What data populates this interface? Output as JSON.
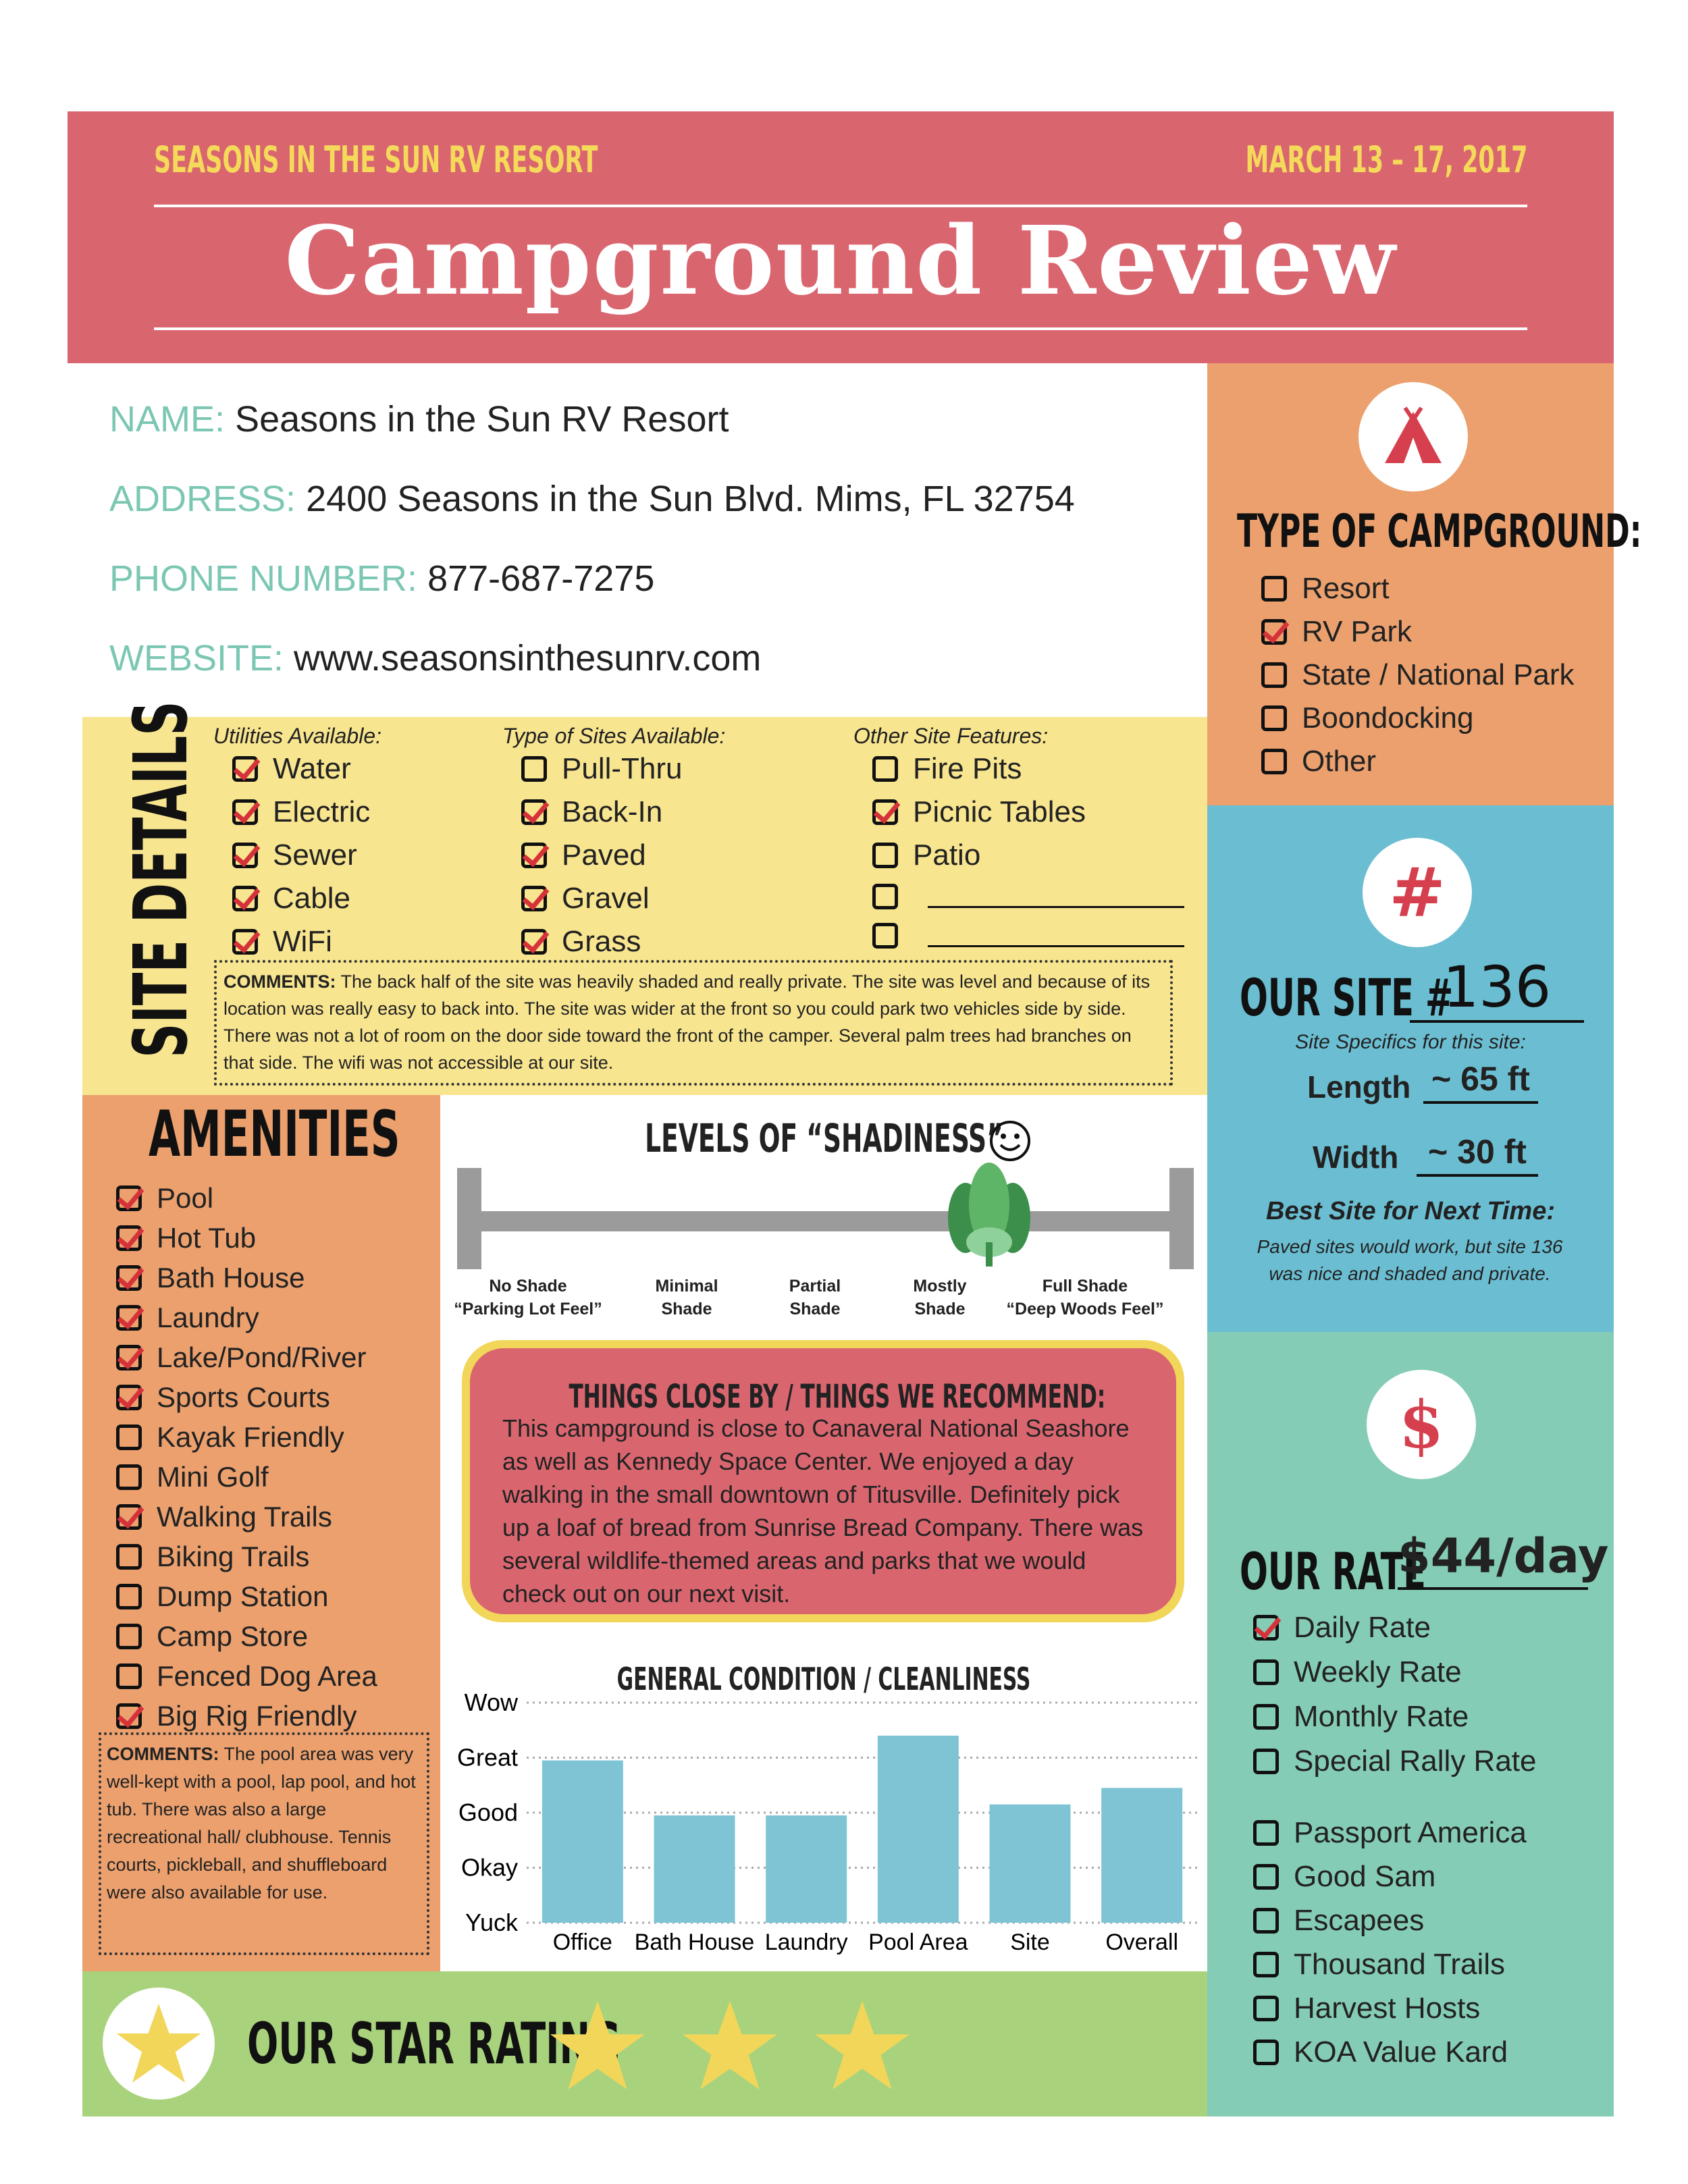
{
  "header": {
    "resort": "SEASONS IN THE SUN RV RESORT",
    "dates": "MARCH 13 – 17, 2017",
    "title": "Campground Review"
  },
  "info": [
    {
      "label": "NAME:",
      "value": "Seasons in the Sun RV Resort"
    },
    {
      "label": "ADDRESS:",
      "value": "2400 Seasons in the Sun Blvd. Mims, FL 32754"
    },
    {
      "label": "PHONE NUMBER:",
      "value": "877-687-7275"
    },
    {
      "label": "WEBSITE:",
      "value": "www.seasonsinthesunrv.com"
    }
  ],
  "type_of_campground": {
    "title": "TYPE OF CAMPGROUND:",
    "options": [
      {
        "label": "Resort",
        "checked": false
      },
      {
        "label": "RV Park",
        "checked": true
      },
      {
        "label": "State / National Park",
        "checked": false
      },
      {
        "label": "Boondocking",
        "checked": false
      },
      {
        "label": "Other",
        "checked": false
      }
    ]
  },
  "site_details": {
    "title": "SITE DETAILS",
    "columns": [
      {
        "heading": "Utilities Available:",
        "items": [
          {
            "label": "Water",
            "checked": true
          },
          {
            "label": "Electric",
            "checked": true
          },
          {
            "label": "Sewer",
            "checked": true
          },
          {
            "label": "Cable",
            "checked": true
          },
          {
            "label": "WiFi",
            "checked": true
          }
        ]
      },
      {
        "heading": "Type of Sites Available:",
        "items": [
          {
            "label": "Pull-Thru",
            "checked": false
          },
          {
            "label": "Back-In",
            "checked": true
          },
          {
            "label": "Paved",
            "checked": true
          },
          {
            "label": "Gravel",
            "checked": true
          },
          {
            "label": "Grass",
            "checked": true
          }
        ]
      },
      {
        "heading": "Other Site Features:",
        "items": [
          {
            "label": "Fire Pits",
            "checked": false
          },
          {
            "label": "Picnic Tables",
            "checked": true
          },
          {
            "label": "Patio",
            "checked": false
          },
          {
            "label": "",
            "checked": false
          },
          {
            "label": "",
            "checked": false
          }
        ]
      }
    ],
    "comments_label": "COMMENTS:",
    "comments": "The back half of the site was heavily shaded and really private. The site was level and because of its location was really easy to back into. The site was wider at the front so you could park two vehicles side by side. There was not a lot of room on the door side toward the front of the camper. Several palm trees had branches on that side. The wifi was not accessible at our site."
  },
  "our_site": {
    "icon": "#",
    "label": "OUR SITE #",
    "number": "136",
    "specifics": "Site Specifics for this site:",
    "length_label": "Length",
    "length": "~ 65 ft",
    "width_label": "Width",
    "width": "~ 30 ft",
    "best_title": "Best Site for Next Time:",
    "best_text": "Paved sites would work, but site 136 was nice and shaded and private."
  },
  "amenities": {
    "title": "AMENITIES",
    "items": [
      {
        "label": "Pool",
        "checked": true
      },
      {
        "label": "Hot Tub",
        "checked": true
      },
      {
        "label": "Bath House",
        "checked": true
      },
      {
        "label": "Laundry",
        "checked": true
      },
      {
        "label": "Lake/Pond/River",
        "checked": true
      },
      {
        "label": "Sports Courts",
        "checked": true
      },
      {
        "label": "Kayak Friendly",
        "checked": false
      },
      {
        "label": "Mini Golf",
        "checked": false
      },
      {
        "label": "Walking Trails",
        "checked": true
      },
      {
        "label": "Biking Trails",
        "checked": false
      },
      {
        "label": "Dump Station",
        "checked": false
      },
      {
        "label": "Camp Store",
        "checked": false
      },
      {
        "label": "Fenced Dog Area",
        "checked": false
      },
      {
        "label": "Big Rig Friendly",
        "checked": true
      }
    ],
    "comments_label": "COMMENTS:",
    "comments": "The pool area was very well-kept with a pool, lap pool, and hot tub. There was also a large recreational hall/ clubhouse. Tennis courts, pickleball, and shuffleboard were also available for use."
  },
  "shadiness": {
    "title": "LEVELS OF “SHADINESS”",
    "level": 0.73,
    "labels": [
      {
        "l1": "No Shade",
        "l2": "“Parking Lot Feel”"
      },
      {
        "l1": "Minimal",
        "l2": "Shade"
      },
      {
        "l1": "Partial",
        "l2": "Shade"
      },
      {
        "l1": "Mostly",
        "l2": "Shade"
      },
      {
        "l1": "Full Shade",
        "l2": "“Deep Woods Feel”"
      }
    ]
  },
  "things": {
    "title": "THINGS CLOSE BY / THINGS WE RECOMMEND:",
    "text": "This campground is close to Canaveral National Seashore as well as Kennedy Space Center. We enjoyed a day walking in the small downtown of Titusville. Definitely pick up a loaf of bread from Sunrise Bread Company. There was several wildlife-themed areas and parks that we would check out on our next visit."
  },
  "chart_data": {
    "type": "bar",
    "title": "GENERAL CONDITION / CLEANLINESS",
    "categories": [
      "Office",
      "Bath House",
      "Laundry",
      "Pool Area",
      "Site",
      "Overall"
    ],
    "y_ticks": [
      "Yuck",
      "Okay",
      "Good",
      "Great",
      "Wow"
    ],
    "values": [
      2.95,
      1.95,
      1.95,
      3.4,
      2.15,
      2.45
    ],
    "ylim": [
      0,
      4
    ],
    "grid": true,
    "color": "#7ec4d4"
  },
  "rate": {
    "icon": "$",
    "label": "OUR RATE",
    "value": "$44/day",
    "options": [
      {
        "label": "Daily Rate",
        "checked": true
      },
      {
        "label": "Weekly Rate",
        "checked": false
      },
      {
        "label": "Monthly Rate",
        "checked": false
      },
      {
        "label": "Special Rally Rate",
        "checked": false
      }
    ],
    "memberships": [
      {
        "label": "Passport America",
        "checked": false
      },
      {
        "label": "Good Sam",
        "checked": false
      },
      {
        "label": "Escapees",
        "checked": false
      },
      {
        "label": "Thousand Trails",
        "checked": false
      },
      {
        "label": "Harvest Hosts",
        "checked": false
      },
      {
        "label": "KOA Value Kard",
        "checked": false
      }
    ]
  },
  "star_rating": {
    "label": "OUR STAR RATING",
    "stars": 3
  },
  "colors": {
    "pink": "#d9656f",
    "orange": "#eba06e",
    "yellow": "#f8e58f",
    "blue": "#6bbed2",
    "teal": "#84ccb5",
    "green": "#a8d27c",
    "gold": "#f1d65a",
    "label_teal": "#7bc7b3"
  }
}
